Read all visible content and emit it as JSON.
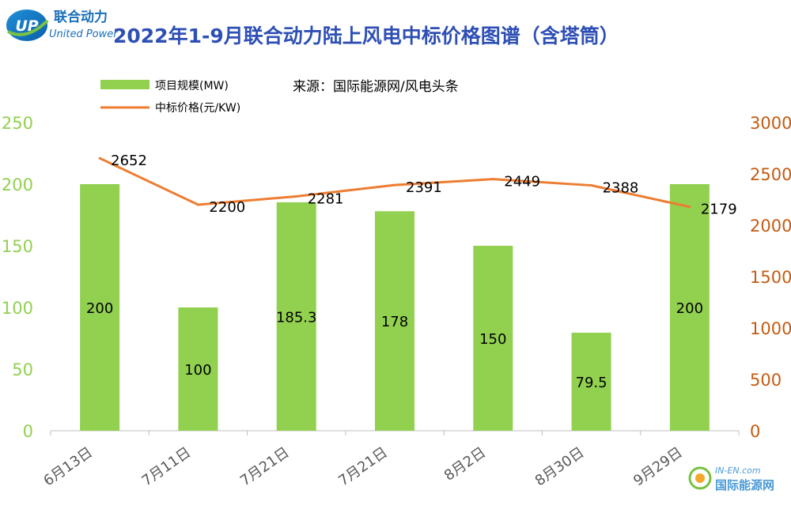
{
  "logo": {
    "cn": "联合动力",
    "en": "United Power",
    "mark": "UP"
  },
  "source": "来源：国际能源网/风电头条",
  "watermark": {
    "en": "IN-EN.com",
    "cn": "国际能源网"
  },
  "colors": {
    "bar": "#92d050",
    "line": "#ed7d31",
    "title": "#2e4fb4",
    "left_axis": "#92d050",
    "right_axis": "#c55a11"
  },
  "chart_data": {
    "type": "bar",
    "title": "2022年1-9月联合动力陆上风电中标价格图谱（含塔筒）",
    "categories": [
      "6月13日",
      "7月11日",
      "7月21日",
      "7月21日",
      "8月2日",
      "8月30日",
      "9月29日"
    ],
    "series": [
      {
        "name": "项目规模(MW)",
        "type": "bar",
        "axis": "left",
        "values": [
          200,
          100,
          185.3,
          178,
          150,
          79.5,
          200
        ],
        "labels": [
          "200",
          "100",
          "185.3",
          "178",
          "150",
          "79.5",
          "200"
        ]
      },
      {
        "name": "中标价格(元/KW)",
        "type": "line",
        "axis": "right",
        "values": [
          2652,
          2200,
          2281,
          2391,
          2449,
          2388,
          2179
        ],
        "labels": [
          "2652",
          "2200",
          "2281",
          "2391",
          "2449",
          "2388",
          "2179"
        ]
      }
    ],
    "y_left": {
      "range": [
        0,
        250
      ],
      "ticks": [
        "0",
        "50",
        "100",
        "150",
        "200",
        "250"
      ]
    },
    "y_right": {
      "range": [
        0,
        3000
      ],
      "ticks": [
        "0",
        "500",
        "1000",
        "1500",
        "2000",
        "2500",
        "3000"
      ]
    },
    "legend": "top-left",
    "grid": false
  }
}
